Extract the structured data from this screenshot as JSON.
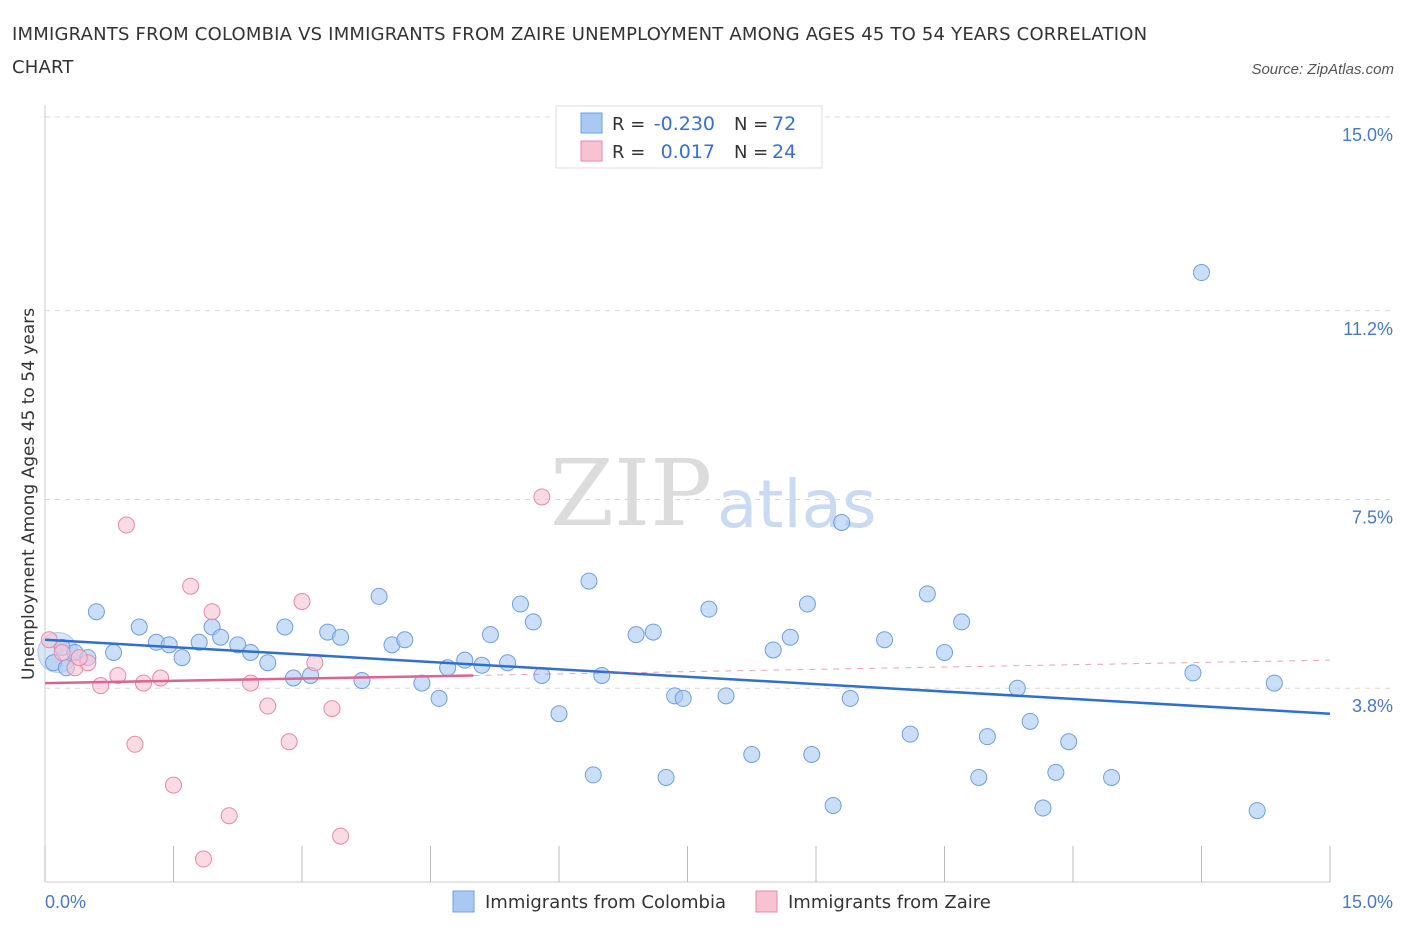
{
  "title": "IMMIGRANTS FROM COLOMBIA VS IMMIGRANTS FROM ZAIRE UNEMPLOYMENT AMONG AGES 45 TO 54 YEARS CORRELATION CHART",
  "source": "Source: ZipAtlas.com",
  "watermark": {
    "zip": "ZIP",
    "atlas": "atlas"
  },
  "legend_top": {
    "rows": [
      {
        "r_label": "R =",
        "r_value": "-0.230",
        "n_label": "N =",
        "n_value": "72",
        "color": "#a9c8f2"
      },
      {
        "r_label": "R =",
        "r_value": "0.017",
        "n_label": "N =",
        "n_value": "24",
        "color": "#f5b8cb"
      }
    ]
  },
  "legend_bottom": {
    "items": [
      {
        "label": "Immigrants from Colombia",
        "color": "#a9c8f2"
      },
      {
        "label": "Immigrants from Zaire",
        "color": "#f5b8cb"
      }
    ]
  },
  "colors": {
    "colombia_fill": "#a9c8f2",
    "colombia_stroke": "#6f9fe0",
    "colombia_line": "#2f6fcf",
    "zaire_fill": "#f7c3d2",
    "zaire_stroke": "#e58aa8",
    "zaire_line": "#e0628f",
    "tick_text": "#4a78c4",
    "grid": "#d9d9d9"
  },
  "chart_data": {
    "type": "scatter",
    "xlabel": "",
    "ylabel": "Unemployment Among Ages 45 to 54 years",
    "xlim": [
      0,
      15
    ],
    "ylim": [
      0,
      15
    ],
    "x_tick_labels": [
      {
        "value": 0,
        "label": "0.0%"
      },
      {
        "value": 15,
        "label": "15.0%"
      }
    ],
    "y_tick_labels": [
      {
        "value": 3.8,
        "label": "3.8%"
      },
      {
        "value": 7.5,
        "label": "7.5%"
      },
      {
        "value": 11.2,
        "label": "11.2%"
      },
      {
        "value": 15.0,
        "label": "15.0%"
      }
    ],
    "grid": true,
    "legend_position": "top-center",
    "series": [
      {
        "name": "Immigrants from Colombia",
        "points": [
          [
            0.1,
            4.3
          ],
          [
            0.2,
            4.6
          ],
          [
            0.35,
            4.5
          ],
          [
            0.5,
            4.4
          ],
          [
            0.6,
            5.3
          ],
          [
            0.8,
            4.5
          ],
          [
            1.1,
            5.0
          ],
          [
            1.3,
            4.7
          ],
          [
            1.45,
            4.65
          ],
          [
            1.6,
            4.4
          ],
          [
            1.8,
            4.7
          ],
          [
            1.95,
            5.0
          ],
          [
            2.05,
            4.8
          ],
          [
            2.25,
            4.65
          ],
          [
            2.4,
            4.5
          ],
          [
            2.6,
            4.3
          ],
          [
            2.8,
            5.0
          ],
          [
            2.9,
            4.0
          ],
          [
            3.1,
            4.05
          ],
          [
            3.3,
            4.9
          ],
          [
            3.45,
            4.8
          ],
          [
            3.7,
            3.95
          ],
          [
            3.9,
            5.6
          ],
          [
            4.05,
            4.65
          ],
          [
            4.2,
            4.75
          ],
          [
            4.4,
            3.9
          ],
          [
            4.6,
            3.6
          ],
          [
            4.7,
            4.2
          ],
          [
            4.9,
            4.35
          ],
          [
            5.1,
            4.25
          ],
          [
            5.2,
            4.85
          ],
          [
            5.4,
            4.3
          ],
          [
            5.55,
            5.45
          ],
          [
            5.7,
            5.1
          ],
          [
            5.8,
            4.05
          ],
          [
            6.0,
            3.3
          ],
          [
            6.35,
            5.9
          ],
          [
            6.4,
            2.1
          ],
          [
            6.5,
            4.05
          ],
          [
            6.9,
            4.85
          ],
          [
            7.1,
            4.9
          ],
          [
            7.25,
            2.05
          ],
          [
            7.35,
            3.65
          ],
          [
            7.45,
            3.6
          ],
          [
            7.75,
            5.35
          ],
          [
            7.95,
            3.65
          ],
          [
            8.25,
            2.5
          ],
          [
            8.5,
            4.55
          ],
          [
            8.7,
            4.8
          ],
          [
            8.9,
            5.45
          ],
          [
            8.95,
            2.5
          ],
          [
            9.2,
            1.5
          ],
          [
            9.3,
            7.05
          ],
          [
            9.4,
            3.6
          ],
          [
            9.8,
            4.75
          ],
          [
            10.1,
            2.9
          ],
          [
            10.3,
            5.65
          ],
          [
            10.5,
            4.5
          ],
          [
            10.7,
            5.1
          ],
          [
            10.9,
            2.05
          ],
          [
            11.0,
            2.85
          ],
          [
            11.35,
            3.8
          ],
          [
            11.5,
            3.15
          ],
          [
            11.65,
            1.45
          ],
          [
            11.8,
            2.15
          ],
          [
            11.95,
            2.75
          ],
          [
            12.45,
            2.05
          ],
          [
            13.4,
            4.1
          ],
          [
            13.5,
            11.95
          ],
          [
            14.15,
            1.4
          ],
          [
            14.35,
            3.9
          ],
          [
            0.25,
            4.2
          ]
        ],
        "trend": {
          "x": [
            0,
            15
          ],
          "y": [
            4.75,
            3.3
          ]
        }
      },
      {
        "name": "Immigrants from Zaire",
        "points": [
          [
            0.05,
            4.75
          ],
          [
            0.2,
            4.5
          ],
          [
            0.35,
            4.2
          ],
          [
            0.5,
            4.3
          ],
          [
            0.65,
            3.85
          ],
          [
            0.85,
            4.05
          ],
          [
            0.95,
            7.0
          ],
          [
            1.05,
            2.7
          ],
          [
            1.15,
            3.9
          ],
          [
            1.35,
            4.0
          ],
          [
            1.5,
            1.9
          ],
          [
            1.7,
            5.8
          ],
          [
            1.85,
            0.45
          ],
          [
            1.95,
            5.3
          ],
          [
            2.15,
            1.3
          ],
          [
            2.4,
            3.9
          ],
          [
            2.6,
            3.45
          ],
          [
            2.85,
            2.75
          ],
          [
            3.0,
            5.5
          ],
          [
            3.15,
            4.3
          ],
          [
            3.35,
            3.4
          ],
          [
            3.45,
            0.9
          ],
          [
            5.8,
            7.55
          ],
          [
            0.4,
            4.4
          ]
        ],
        "trend": {
          "x": [
            0,
            5.0
          ],
          "y": [
            3.9,
            4.05
          ]
        },
        "trend_dashed": {
          "x": [
            5.0,
            15
          ],
          "y": [
            4.05,
            4.35
          ]
        }
      }
    ]
  }
}
